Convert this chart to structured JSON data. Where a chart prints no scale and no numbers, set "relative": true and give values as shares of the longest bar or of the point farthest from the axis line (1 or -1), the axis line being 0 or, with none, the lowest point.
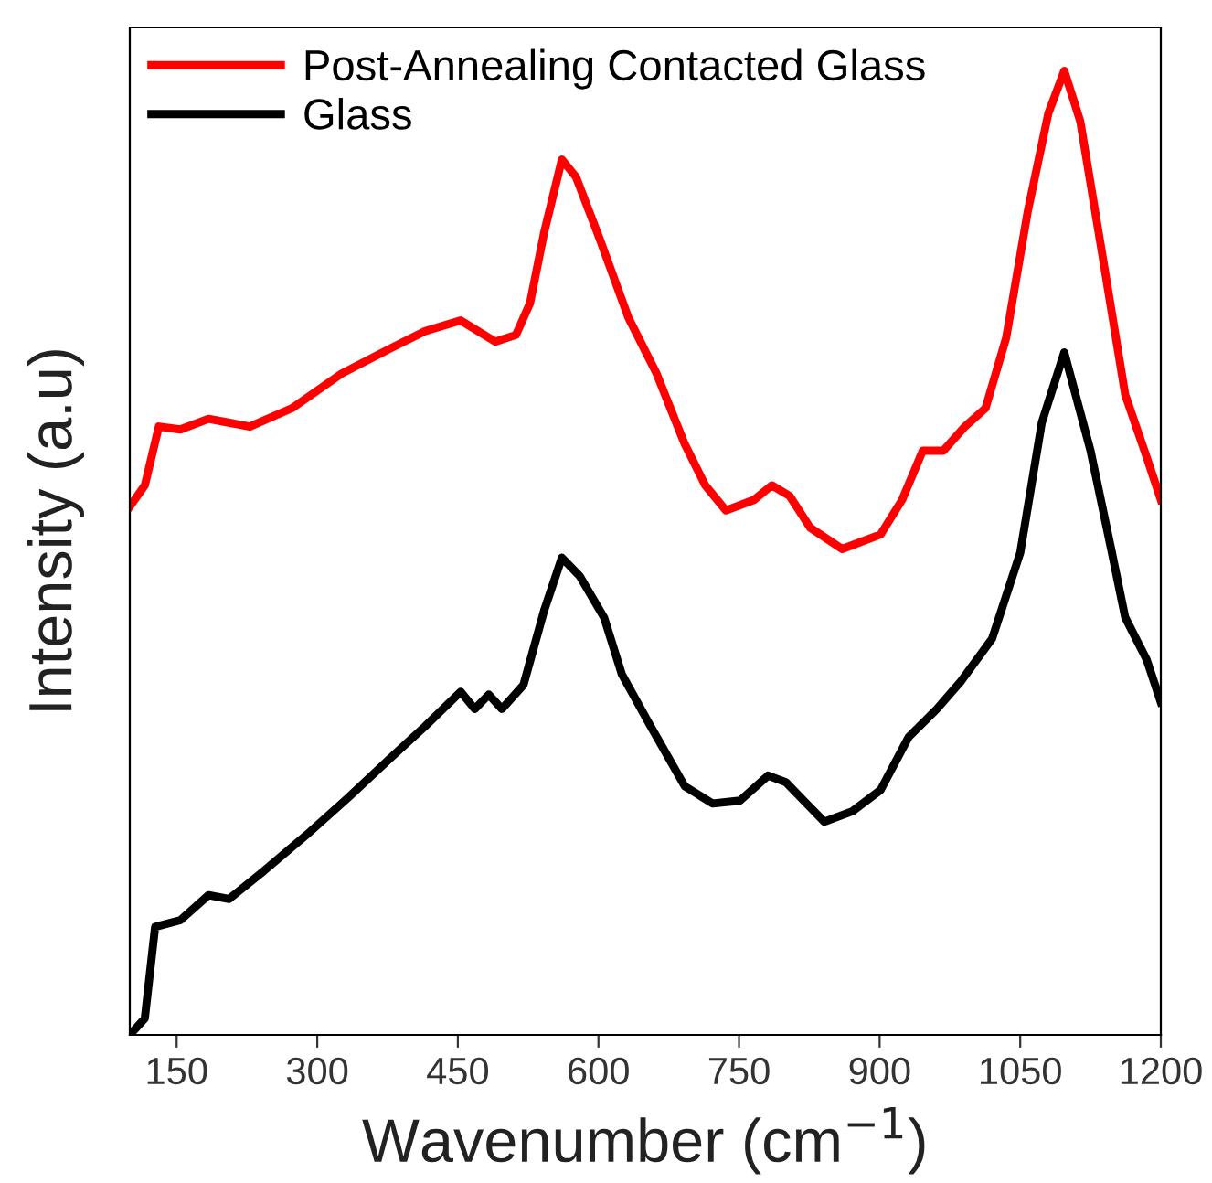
{
  "chart_data": {
    "type": "line",
    "xlabel": "Wavenumber (cm$^{−1}$)",
    "ylabel": "Intensity (a.u)",
    "relative": true,
    "xlim": [
      100,
      1200
    ],
    "xticks": [
      150,
      300,
      450,
      600,
      750,
      900,
      1050,
      1200
    ],
    "tick_labels": "x",
    "legend": "top left",
    "grid": false,
    "marker": "none",
    "line_style": "solid",
    "series": [
      {
        "name": "Post-Annealing Contacted Glass",
        "color": "#ff0000",
        "x": [
          100,
          116,
          131,
          154,
          184,
          228,
          273,
          326,
          378,
          415,
          453,
          490,
          512,
          527,
          542,
          561,
          576,
          602,
          632,
          662,
          692,
          714,
          736,
          766,
          785,
          804,
          826,
          860,
          901,
          924,
          946,
          968,
          991,
          1013,
          1035,
          1058,
          1080,
          1097,
          1114,
          1140,
          1162,
          1185,
          1200
        ],
        "values": [
          0.548,
          0.57,
          0.631,
          0.628,
          0.639,
          0.631,
          0.65,
          0.686,
          0.712,
          0.73,
          0.741,
          0.719,
          0.726,
          0.759,
          0.832,
          0.908,
          0.89,
          0.824,
          0.744,
          0.686,
          0.613,
          0.57,
          0.544,
          0.555,
          0.57,
          0.559,
          0.526,
          0.504,
          0.519,
          0.555,
          0.606,
          0.606,
          0.631,
          0.65,
          0.723,
          0.854,
          0.956,
          1,
          0.948,
          0.795,
          0.664,
          0.599,
          0.555
        ]
      },
      {
        "name": "Glass",
        "color": "#000000",
        "x": [
          100,
          116,
          127,
          154,
          184,
          206,
          243,
          288,
          334,
          378,
          415,
          453,
          468,
          483,
          497,
          520,
          542,
          561,
          580,
          606,
          625,
          654,
          692,
          722,
          751,
          781,
          800,
          819,
          841,
          871,
          901,
          931,
          961,
          987,
          1020,
          1050,
          1073,
          1097,
          1125,
          1147,
          1162,
          1185,
          1200
        ],
        "values": [
          0,
          0.017,
          0.112,
          0.119,
          0.145,
          0.141,
          0.17,
          0.207,
          0.247,
          0.287,
          0.32,
          0.356,
          0.338,
          0.353,
          0.338,
          0.363,
          0.44,
          0.495,
          0.476,
          0.433,
          0.374,
          0.323,
          0.258,
          0.24,
          0.243,
          0.269,
          0.262,
          0.243,
          0.221,
          0.232,
          0.254,
          0.309,
          0.338,
          0.367,
          0.411,
          0.5,
          0.635,
          0.708,
          0.606,
          0.504,
          0.433,
          0.389,
          0.345
        ]
      }
    ]
  }
}
